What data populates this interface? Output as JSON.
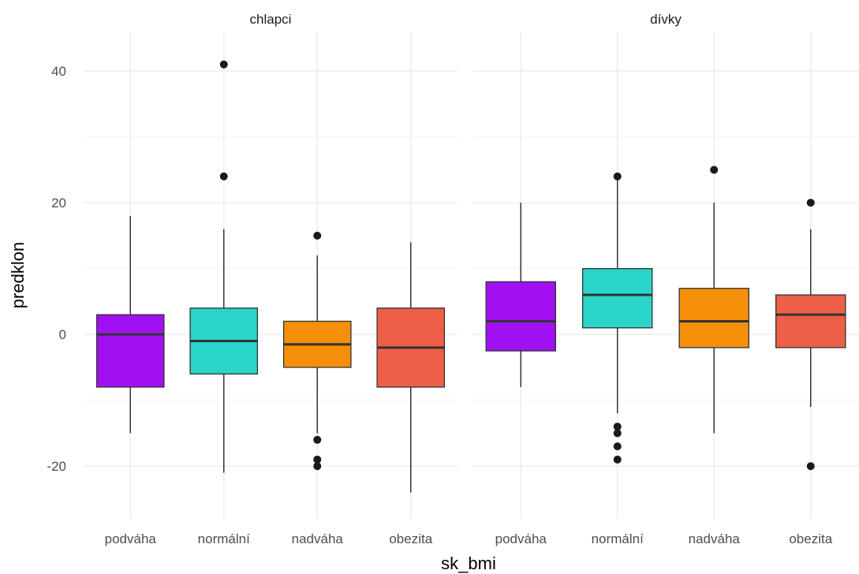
{
  "chart_data": {
    "type": "boxplot",
    "xlabel": "sk_bmi",
    "ylabel": "predklon",
    "ylim": [
      -28,
      46
    ],
    "y_ticks": [
      -20,
      0,
      20,
      40
    ],
    "grid": true,
    "categories": [
      "podváha",
      "normální",
      "nadváha",
      "obezita"
    ],
    "colors": [
      "#a010f0",
      "#2ad4c8",
      "#f58f0a",
      "#ee5f47"
    ],
    "facets": [
      {
        "label": "chlapci",
        "boxes": [
          {
            "category": "podváha",
            "whisker_low": -15,
            "q1": -8,
            "median": 0,
            "q3": 3,
            "whisker_high": 18,
            "outliers": []
          },
          {
            "category": "normální",
            "whisker_low": -21,
            "q1": -6,
            "median": -1,
            "q3": 4,
            "whisker_high": 16,
            "outliers": [
              41,
              24
            ]
          },
          {
            "category": "nadváha",
            "whisker_low": -15,
            "q1": -5,
            "median": -1.5,
            "q3": 2,
            "whisker_high": 12,
            "outliers": [
              15,
              -16,
              -19,
              -20
            ]
          },
          {
            "category": "obezita",
            "whisker_low": -24,
            "q1": -8,
            "median": -2,
            "q3": 4,
            "whisker_high": 14,
            "outliers": []
          }
        ]
      },
      {
        "label": "dívky",
        "boxes": [
          {
            "category": "podváha",
            "whisker_low": -8,
            "q1": -2.5,
            "median": 2,
            "q3": 8,
            "whisker_high": 20,
            "outliers": []
          },
          {
            "category": "normální",
            "whisker_low": -12,
            "q1": 1,
            "median": 6,
            "q3": 10,
            "whisker_high": 23.5,
            "outliers": [
              24,
              -14,
              -15,
              -17,
              -19
            ]
          },
          {
            "category": "nadváha",
            "whisker_low": -15,
            "q1": -2,
            "median": 2,
            "q3": 7,
            "whisker_high": 20,
            "outliers": [
              25
            ]
          },
          {
            "category": "obezita",
            "whisker_low": -11,
            "q1": -2,
            "median": 3,
            "q3": 6,
            "whisker_high": 16,
            "outliers": [
              20,
              -20
            ]
          }
        ]
      }
    ]
  }
}
